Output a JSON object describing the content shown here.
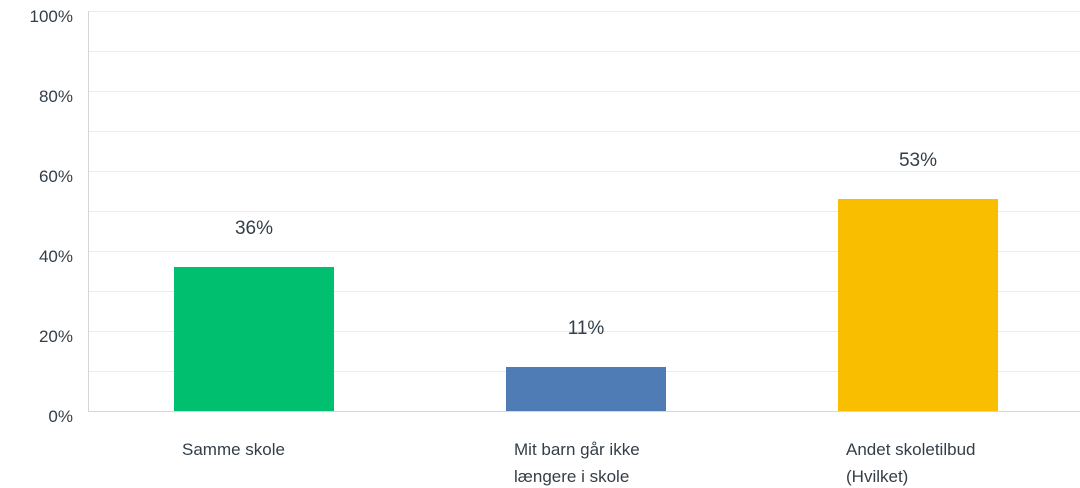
{
  "chart_data": {
    "type": "bar",
    "title": "",
    "xlabel": "",
    "ylabel": "",
    "ylim": [
      0,
      100
    ],
    "y_ticks": [
      0,
      20,
      40,
      60,
      80,
      100
    ],
    "y_tick_labels": [
      "0%",
      "20%",
      "40%",
      "60%",
      "80%",
      "100%"
    ],
    "grid": true,
    "categories": [
      [
        "Samme skole"
      ],
      [
        "Mit barn går ikke",
        "længere i skole"
      ],
      [
        "Andet skoletilbud",
        "(Hvilket)"
      ]
    ],
    "values": [
      36,
      11,
      53
    ],
    "value_labels": [
      "36%",
      "11%",
      "53%"
    ],
    "colors": [
      "#00bf6f",
      "#507cb6",
      "#f9be00"
    ]
  }
}
